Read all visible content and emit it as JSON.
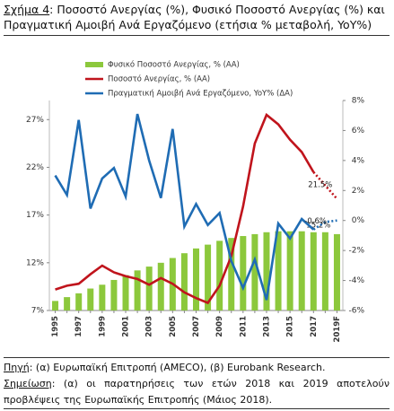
{
  "chart_data": {
    "type": "bar-line",
    "figure_label": "Σχήμα 4",
    "title": ": Ποσοστό Ανεργίας (%), Φυσικό Ποσοστό Ανεργίας (%) και Πραγματική Αμοιβή Ανά Εργαζόμενο (ετήσια % μεταβολή, YoY%)",
    "categories": [
      "1995",
      null,
      "1997",
      null,
      "1999",
      null,
      "2001",
      null,
      "2003",
      null,
      "2005",
      null,
      "2007",
      null,
      "2009",
      null,
      "2011",
      null,
      "2013",
      null,
      "2015",
      null,
      "2017",
      null,
      "2019F"
    ],
    "series": [
      {
        "name": "Φυσικό Ποσοστό Ανεργίας, % (ΑΑ)",
        "type": "bar",
        "color": "#8cc83c",
        "values": [
          8.0,
          8.4,
          8.8,
          9.3,
          9.7,
          10.2,
          10.7,
          11.2,
          11.6,
          12.0,
          12.5,
          13.0,
          13.5,
          13.9,
          14.3,
          14.6,
          14.8,
          15.0,
          15.2,
          15.3,
          15.3,
          15.3,
          15.2,
          15.2,
          15.0
        ],
        "value_labels": [
          null,
          null,
          null,
          null,
          null,
          null,
          null,
          null,
          null,
          null,
          null,
          null,
          null,
          null,
          null,
          null,
          null,
          null,
          null,
          null,
          null,
          null,
          "15.2%",
          null,
          null
        ]
      },
      {
        "name": "Ποσοστό Ανεργίας, % (ΑΑ)",
        "type": "line",
        "color": "#c0141c",
        "values": [
          9.2,
          9.6,
          9.8,
          10.8,
          11.7,
          11.0,
          10.6,
          10.3,
          9.7,
          10.4,
          9.8,
          8.9,
          8.3,
          7.8,
          9.6,
          12.7,
          17.9,
          24.5,
          27.5,
          26.5,
          24.9,
          23.6,
          21.5,
          20.1,
          18.7
        ],
        "value_labels": [
          null,
          null,
          null,
          null,
          null,
          null,
          null,
          null,
          null,
          null,
          null,
          null,
          null,
          null,
          null,
          null,
          null,
          null,
          null,
          null,
          null,
          null,
          "21.5%",
          null,
          null
        ]
      },
      {
        "name": "Πραγματική Αμοιβή Ανά Εργαζόμενο, YoY% (ΔΑ)",
        "type": "line",
        "axis": "y2",
        "color": "#1f6cb4",
        "values": [
          3.0,
          1.7,
          6.7,
          0.8,
          2.8,
          3.5,
          1.6,
          7.1,
          4.0,
          1.5,
          6.1,
          -0.4,
          1.1,
          -0.3,
          0.5,
          -2.7,
          -4.5,
          -2.6,
          -5.3,
          -0.2,
          -1.2,
          0.1,
          -0.6,
          -0.1,
          0.0
        ],
        "value_labels": [
          null,
          null,
          null,
          null,
          null,
          null,
          null,
          null,
          null,
          null,
          null,
          null,
          null,
          null,
          null,
          null,
          null,
          null,
          null,
          null,
          null,
          null,
          "-0.6%",
          null,
          null
        ]
      }
    ],
    "projected_from": 22,
    "ylim": [
      7,
      29
    ],
    "yticks": [
      {
        "value": 7,
        "label": "7%"
      },
      {
        "value": 12,
        "label": "12%"
      },
      {
        "value": 17,
        "label": "17%"
      },
      {
        "value": 22,
        "label": "22%"
      },
      {
        "value": 27,
        "label": "27%"
      }
    ],
    "y2lim": [
      -6,
      8
    ],
    "y2ticks": [
      {
        "value": -6,
        "label": "-6%"
      },
      {
        "value": -4,
        "label": "-4%"
      },
      {
        "value": -2,
        "label": "-2%"
      },
      {
        "value": 0,
        "label": "0%"
      },
      {
        "value": 2,
        "label": "2%"
      },
      {
        "value": 4,
        "label": "4%"
      },
      {
        "value": 6,
        "label": "6%"
      },
      {
        "value": 8,
        "label": "8%"
      }
    ],
    "grid": false,
    "source_label": "Πηγή",
    "source_text": ": (α) Ευρωπαϊκή Επιτροπή (AMECO), (β) Eurobank Research.",
    "note_label": "Σημείωση",
    "note_text": ": (α) οι παρατηρήσεις των ετών 2018 και 2019 αποτελούν προβλέψεις της Ευρωπαϊκής Επιτροπής (Μάιος 2018)."
  }
}
